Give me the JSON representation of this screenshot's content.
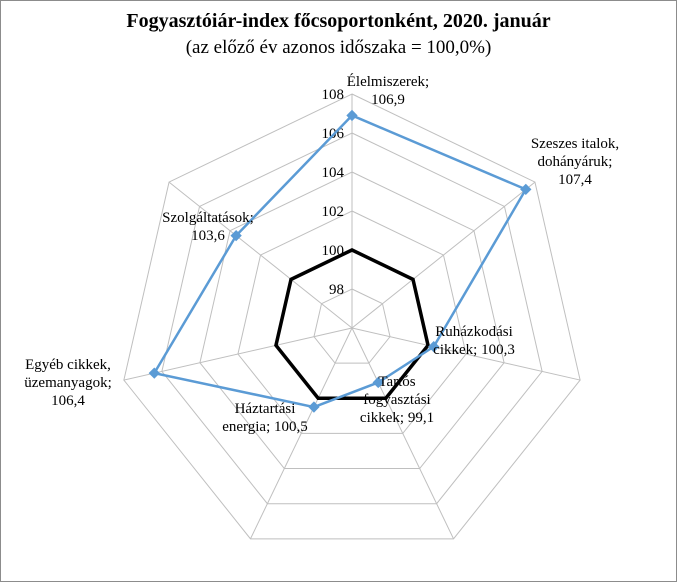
{
  "chart_data": {
    "type": "radar",
    "title": "Fogyasztóiár-index főcsoportonként, 2020. január",
    "subtitle": "(az előző év azonos időszaka = 100,0%)",
    "categories": [
      "Élelmiszerek",
      "Szeszes italok, dohányáruk",
      "Ruházkodási cikkek",
      "Tartós fogyasztási cikkek",
      "Háztartási energia",
      "Egyéb cikkek, üzemanyagok",
      "Szolgáltatások"
    ],
    "series": [
      {
        "values": [
          106.9,
          107.4,
          100.3,
          99.1,
          100.5,
          106.4,
          103.6
        ],
        "color": "#5b9bd5"
      },
      {
        "values": [
          100,
          100,
          100,
          100,
          100,
          100,
          100
        ],
        "color": "#000000"
      }
    ],
    "point_labels": [
      [
        "Élelmiszerek;",
        "106,9"
      ],
      [
        "Szeszes italok,",
        "dohányáruk;",
        "107,4"
      ],
      [
        "Ruházkodási",
        "cikkek;  100,3"
      ],
      [
        "Tartós",
        "fogyasztási",
        "cikkek;  99,1"
      ],
      [
        "Háztartási",
        "energia;  100,5"
      ],
      [
        "Egyéb cikkek,",
        "üzemanyagok;",
        "106,4"
      ],
      [
        "Szolgáltatások;",
        "103,6"
      ]
    ],
    "axis": {
      "min": 96,
      "max": 108,
      "tick_step": 2,
      "tick_labels": [
        "98",
        "100",
        "102",
        "104",
        "106",
        "108"
      ]
    },
    "grid": true,
    "legend": "none"
  }
}
